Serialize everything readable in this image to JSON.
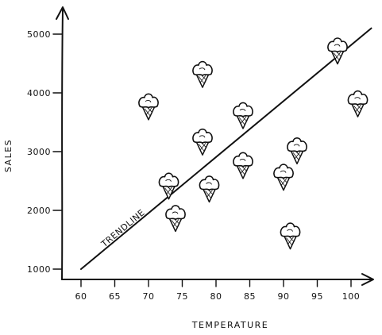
{
  "chart_data": {
    "type": "scatter",
    "title": "",
    "xlabel": "TEMPERATURE",
    "ylabel": "SALES",
    "x_ticks": [
      "60",
      "65",
      "70",
      "75",
      "80",
      "85",
      "90",
      "95",
      "100"
    ],
    "y_ticks": [
      "1000",
      "2000",
      "3000",
      "4000",
      "5000"
    ],
    "xlim": [
      58,
      104
    ],
    "ylim": [
      850,
      5300
    ],
    "marker": "ice-cream-cone",
    "grid": false,
    "points": [
      {
        "x": 70,
        "y": 3800
      },
      {
        "x": 73,
        "y": 2450
      },
      {
        "x": 74,
        "y": 1900
      },
      {
        "x": 78,
        "y": 4350
      },
      {
        "x": 78,
        "y": 3200
      },
      {
        "x": 79,
        "y": 2400
      },
      {
        "x": 84,
        "y": 3650
      },
      {
        "x": 84,
        "y": 2800
      },
      {
        "x": 90,
        "y": 2600
      },
      {
        "x": 92,
        "y": 3050
      },
      {
        "x": 91,
        "y": 1600
      },
      {
        "x": 98,
        "y": 4750
      },
      {
        "x": 101,
        "y": 3850
      }
    ],
    "trendline": {
      "label": "TRENDLINE",
      "x": [
        60,
        103
      ],
      "y": [
        1000,
        5100
      ]
    }
  },
  "colors": {
    "ink": "#111111",
    "background": "#ffffff"
  }
}
